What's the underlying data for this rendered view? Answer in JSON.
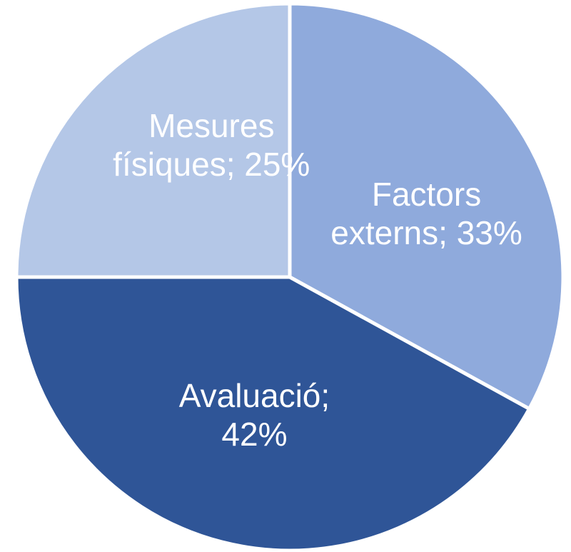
{
  "chart_data": {
    "type": "pie",
    "title": "",
    "slices": [
      {
        "label": "Factors externs",
        "value": 33,
        "value_text": "33%",
        "color": "#8faadc",
        "label_lines": [
          "Factors",
          "externs; 33%"
        ]
      },
      {
        "label": "Avaluació",
        "value": 42,
        "value_text": "42%",
        "color": "#2f5597",
        "label_lines": [
          "Avaluació;",
          "42%"
        ]
      },
      {
        "label": "Mesures físiques",
        "value": 25,
        "value_text": "25%",
        "color": "#b4c7e7",
        "label_lines": [
          "Mesures",
          "físiques; 25%"
        ]
      }
    ],
    "start_angle_deg": 0,
    "direction": "clockwise",
    "separator_color": "#ffffff",
    "legend": "none",
    "data_labels": "inside"
  }
}
